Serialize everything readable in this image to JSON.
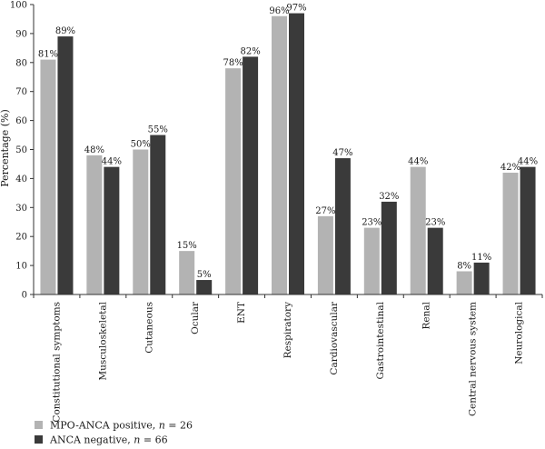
{
  "chart_data": {
    "type": "bar",
    "title": "",
    "xlabel": "",
    "ylabel": "Percentage (%)",
    "ylim": [
      0,
      100
    ],
    "yticks": [
      0,
      10,
      20,
      30,
      40,
      50,
      60,
      70,
      80,
      90,
      100
    ],
    "grid": false,
    "legend_position": "bottom-left",
    "categories": [
      "Constitutional symptoms",
      "Musculoskeletal",
      "Cutaneous",
      "Ocular",
      "ENT",
      "Respiratory",
      "Cardiovascular",
      "Gastrointestinal",
      "Renal",
      "Central nervous system",
      "Neurological"
    ],
    "series": [
      {
        "legend_prefix": "MPO-ANCA positive, ",
        "legend_italic": "n",
        "legend_suffix": " = 26",
        "color": "#b3b3b3",
        "values": [
          81,
          48,
          50,
          15,
          78,
          96,
          27,
          23,
          44,
          8,
          42
        ],
        "labels": [
          "81%",
          "48%",
          "50%",
          "15%",
          "78%",
          "96%",
          "27%",
          "23%",
          "44%",
          "8%",
          "42%"
        ]
      },
      {
        "legend_prefix": "ANCA negative, ",
        "legend_italic": "n",
        "legend_suffix": " = 66",
        "color": "#3a3a3a",
        "values": [
          89,
          44,
          55,
          5,
          82,
          97,
          47,
          32,
          23,
          11,
          44
        ],
        "labels": [
          "89%",
          "44%",
          "55%",
          "5%",
          "82%",
          "97%",
          "47%",
          "32%",
          "23%",
          "11%",
          "44%"
        ]
      }
    ]
  }
}
